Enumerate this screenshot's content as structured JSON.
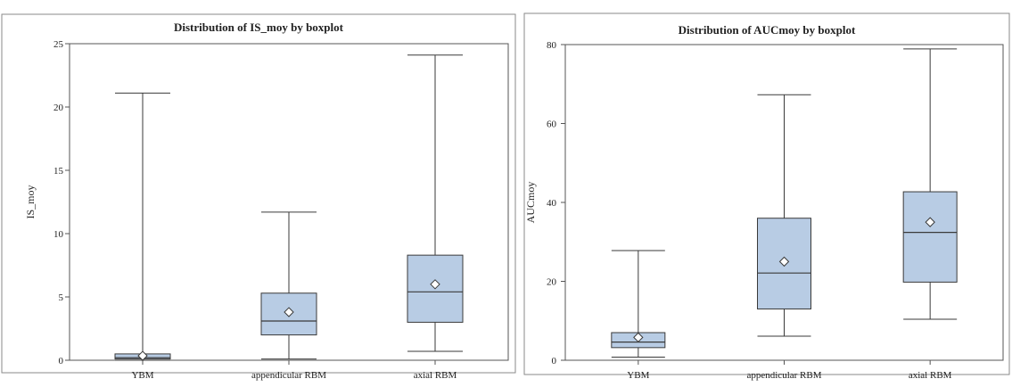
{
  "chart_data": [
    {
      "type": "boxplot",
      "title": "Distribution of IS_moy by boxplot",
      "xlabel": "",
      "ylabel": "IS_moy",
      "categories": [
        "YBM",
        "appendicular RBM",
        "axial RBM"
      ],
      "yticks": [
        0,
        5,
        10,
        15,
        20,
        25
      ],
      "ylim": [
        0,
        25
      ],
      "boxes": [
        {
          "category": "YBM",
          "min": 0,
          "q1": 0.1,
          "median": 0.2,
          "q3": 0.5,
          "max": 21.1,
          "mean": 0.35
        },
        {
          "category": "appendicular RBM",
          "min": 0.1,
          "q1": 2.0,
          "median": 3.1,
          "q3": 5.3,
          "max": 11.7,
          "mean": 3.8
        },
        {
          "category": "axial RBM",
          "min": 0.7,
          "q1": 3.0,
          "median": 5.4,
          "q3": 8.3,
          "max": 24.1,
          "mean": 6.0
        }
      ],
      "colors": {
        "box_fill": "#b8cce4",
        "box_stroke": "#3a3a3a",
        "frame": "#555555"
      },
      "grid": false
    },
    {
      "type": "boxplot",
      "title": "Distribution of AUCmoy by boxplot",
      "xlabel": "",
      "ylabel": "AUCmoy",
      "categories": [
        "YBM",
        "appendicular RBM",
        "axial RBM"
      ],
      "yticks": [
        0,
        20,
        40,
        60,
        80
      ],
      "ylim": [
        0,
        80
      ],
      "boxes": [
        {
          "category": "YBM",
          "min": 0.8,
          "q1": 3.2,
          "median": 4.6,
          "q3": 7.0,
          "max": 27.8,
          "mean": 5.8
        },
        {
          "category": "appendicular RBM",
          "min": 6.1,
          "q1": 13.0,
          "median": 22.1,
          "q3": 36.0,
          "max": 67.3,
          "mean": 25.0
        },
        {
          "category": "axial RBM",
          "min": 10.4,
          "q1": 19.8,
          "median": 32.4,
          "q3": 42.7,
          "max": 78.9,
          "mean": 35.0
        }
      ],
      "colors": {
        "box_fill": "#b8cce4",
        "box_stroke": "#3a3a3a",
        "frame": "#555555"
      },
      "grid": false
    }
  ]
}
